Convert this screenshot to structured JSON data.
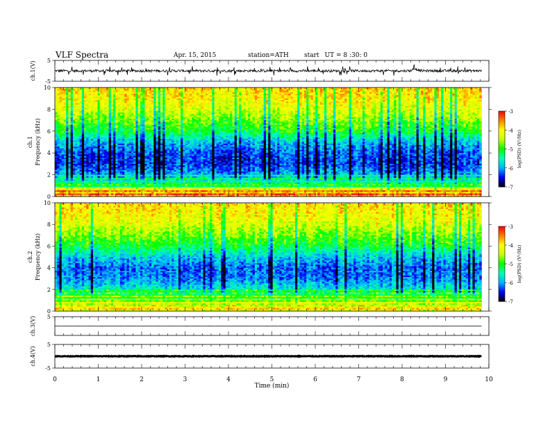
{
  "header": {
    "title": "VLF Spectra",
    "date": "Apr. 15, 2015",
    "station": "station=ATH",
    "start_label": "start",
    "start_time": "UT =  8 :30: 0"
  },
  "colors": {
    "waveform": "#000000",
    "spectrogram_scale": [
      "#000000",
      "#0000ff",
      "#00b4ff",
      "#00ffb4",
      "#00ff00",
      "#c8ff00",
      "#ffff00",
      "#ff8000",
      "#ff0000",
      "#ffffff"
    ]
  },
  "chart_data": [
    {
      "id": "ch1",
      "type": "line",
      "ylabel": "ch.1(V)",
      "ylim": [
        -5,
        5
      ],
      "yticks": [
        "5",
        "-5"
      ],
      "x_range_min": [
        0,
        10
      ],
      "data_end_min": 9.83,
      "baseline_v": 0.0,
      "amplitude_v": 1.2,
      "note_bump_at_min": 8.3
    },
    {
      "id": "ch1-spec",
      "type": "heatmap",
      "ylabel": "ch.1",
      "ylabel2": "Frequency (kHz)",
      "ylim": [
        0,
        10
      ],
      "yticks": [
        "10",
        "8",
        "6",
        "4",
        "2",
        "0"
      ],
      "x_range_min": [
        0,
        10
      ],
      "data_end_min": 9.83,
      "color_label": "log(PSD) (V²/Hz)",
      "color_ticks": [
        "-3",
        "-4",
        "-5",
        "-6",
        "-7"
      ],
      "color_range": [
        -7,
        -3
      ],
      "profile": [
        {
          "f": 0.0,
          "v": -3.6
        },
        {
          "f": 0.5,
          "v": -3.9
        },
        {
          "f": 1.0,
          "v": -5.4
        },
        {
          "f": 2.0,
          "v": -6.0
        },
        {
          "f": 3.0,
          "v": -6.4
        },
        {
          "f": 4.0,
          "v": -6.3
        },
        {
          "f": 5.0,
          "v": -5.9
        },
        {
          "f": 6.0,
          "v": -5.1
        },
        {
          "f": 7.0,
          "v": -4.7
        },
        {
          "f": 8.0,
          "v": -4.3
        },
        {
          "f": 9.0,
          "v": -4.0
        },
        {
          "f": 10.0,
          "v": -3.9
        }
      ]
    },
    {
      "id": "ch2-spec",
      "type": "heatmap",
      "ylabel": "ch.2",
      "ylabel2": "Frequency (kHz)",
      "ylim": [
        0,
        10
      ],
      "yticks": [
        "10",
        "8",
        "6",
        "4",
        "2",
        "0"
      ],
      "x_range_min": [
        0,
        10
      ],
      "data_end_min": 9.83,
      "color_label": "log(PSD) (V²/Hz)",
      "color_ticks": [
        "-3",
        "-4",
        "-5",
        "-6",
        "-7"
      ],
      "color_range": [
        -7,
        -3
      ],
      "profile": [
        {
          "f": 0.0,
          "v": -4.2
        },
        {
          "f": 0.5,
          "v": -4.4
        },
        {
          "f": 1.0,
          "v": -4.9
        },
        {
          "f": 2.0,
          "v": -5.6
        },
        {
          "f": 3.0,
          "v": -6.1
        },
        {
          "f": 4.0,
          "v": -6.2
        },
        {
          "f": 5.0,
          "v": -5.8
        },
        {
          "f": 6.0,
          "v": -5.1
        },
        {
          "f": 7.0,
          "v": -4.7
        },
        {
          "f": 8.0,
          "v": -4.3
        },
        {
          "f": 9.0,
          "v": -4.0
        },
        {
          "f": 10.0,
          "v": -3.9
        }
      ]
    },
    {
      "id": "ch3",
      "type": "line",
      "ylabel": "ch.3(V)",
      "ylim": [
        -5,
        5
      ],
      "yticks": [
        "5"
      ],
      "x_range_min": [
        0,
        10
      ],
      "data_end_min": 9.83,
      "baseline_v": 0.0,
      "amplitude_v": 0.05
    },
    {
      "id": "ch4",
      "type": "line",
      "ylabel": "ch.4(V)",
      "ylim": [
        -5,
        5
      ],
      "yticks": [
        "5",
        "-5"
      ],
      "x_range_min": [
        0,
        10
      ],
      "data_end_min": 9.83,
      "baseline_v": 0.0,
      "amplitude_v": 0.25
    }
  ],
  "x_axis": {
    "label": "Time (min)",
    "ticks": [
      "0",
      "1",
      "2",
      "3",
      "4",
      "5",
      "6",
      "7",
      "8",
      "9",
      "10"
    ]
  }
}
